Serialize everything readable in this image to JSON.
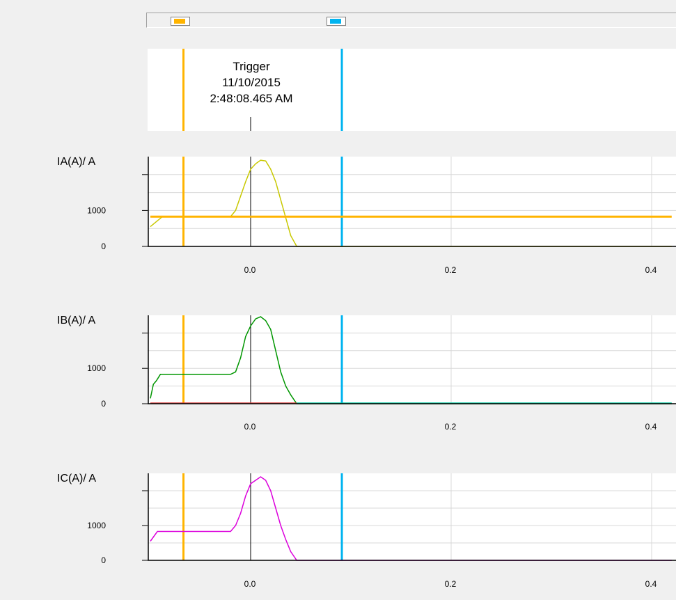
{
  "colors": {
    "background": "#f0f0f0",
    "plot_background": "#ffffff",
    "grid": "#d8d8d8",
    "axis": "#000000",
    "cursor1": "#ffb400",
    "cursor2": "#00b4f0",
    "ia": "#c8c800",
    "ib": "#009600",
    "ic": "#dc00dc",
    "ib_secondary": "#dc3c3c"
  },
  "cursor_bar": {
    "cursor1_color": "#ffb400",
    "cursor2_color": "#00b4f0"
  },
  "trigger": {
    "label": "Trigger",
    "date": "11/10/2015",
    "time": "2:48:08.465 AM",
    "x": 0.0
  },
  "cursors": {
    "cursor1_x": -0.067,
    "cursor2_x": 0.091
  },
  "chart_data": [
    {
      "type": "line",
      "ylabel": "IA(A)/ A",
      "x_tick_labels": [
        "0.0",
        "0.2",
        "0.4"
      ],
      "y_tick_labels": [
        "0",
        "1000"
      ],
      "xlim": [
        -0.1,
        0.42
      ],
      "ylim": [
        0,
        2500
      ],
      "grid": true,
      "series": [
        {
          "color": "#c8c800",
          "x": [
            -0.1,
            -0.088,
            -0.02,
            -0.015,
            -0.01,
            -0.005,
            0.0,
            0.005,
            0.01,
            0.015,
            0.02,
            0.025,
            0.03,
            0.035,
            0.04,
            0.046,
            0.42
          ],
          "y": [
            550,
            830,
            830,
            1000,
            1400,
            1800,
            2150,
            2300,
            2400,
            2380,
            2150,
            1800,
            1300,
            800,
            300,
            0,
            0
          ]
        },
        {
          "color": "#ffb400",
          "x": [
            -0.1,
            0.42
          ],
          "y": [
            830,
            830
          ]
        }
      ]
    },
    {
      "type": "line",
      "ylabel": "IB(A)/ A",
      "x_tick_labels": [
        "0.0",
        "0.2",
        "0.4"
      ],
      "y_tick_labels": [
        "0",
        "1000"
      ],
      "xlim": [
        -0.1,
        0.42
      ],
      "ylim": [
        0,
        2500
      ],
      "grid": true,
      "series": [
        {
          "color": "#009600",
          "x": [
            -0.1,
            -0.097,
            -0.094,
            -0.09,
            -0.02,
            -0.015,
            -0.01,
            -0.005,
            0.0,
            0.005,
            0.01,
            0.015,
            0.02,
            0.025,
            0.03,
            0.035,
            0.04,
            0.046,
            0.42
          ],
          "y": [
            150,
            550,
            650,
            830,
            830,
            900,
            1300,
            1900,
            2200,
            2400,
            2460,
            2350,
            2100,
            1500,
            900,
            500,
            250,
            0,
            0
          ]
        },
        {
          "color": "#dc3c3c",
          "x": [
            -0.1,
            0.046
          ],
          "y": [
            20,
            20
          ]
        },
        {
          "color": "#00c8a0",
          "x": [
            0.046,
            0.42
          ],
          "y": [
            20,
            20
          ]
        }
      ]
    },
    {
      "type": "line",
      "ylabel": "IC(A)/ A",
      "x_tick_labels": [
        "0.0",
        "0.2",
        "0.4"
      ],
      "y_tick_labels": [
        "0",
        "1000"
      ],
      "xlim": [
        -0.1,
        0.42
      ],
      "ylim": [
        0,
        2500
      ],
      "grid": true,
      "series": [
        {
          "color": "#dc00dc",
          "x": [
            -0.1,
            -0.093,
            -0.02,
            -0.015,
            -0.01,
            -0.005,
            0.0,
            0.005,
            0.01,
            0.015,
            0.02,
            0.025,
            0.03,
            0.035,
            0.04,
            0.046,
            0.42
          ],
          "y": [
            550,
            830,
            830,
            1000,
            1350,
            1850,
            2200,
            2300,
            2400,
            2300,
            2000,
            1500,
            1000,
            600,
            250,
            0,
            0
          ]
        }
      ]
    }
  ]
}
